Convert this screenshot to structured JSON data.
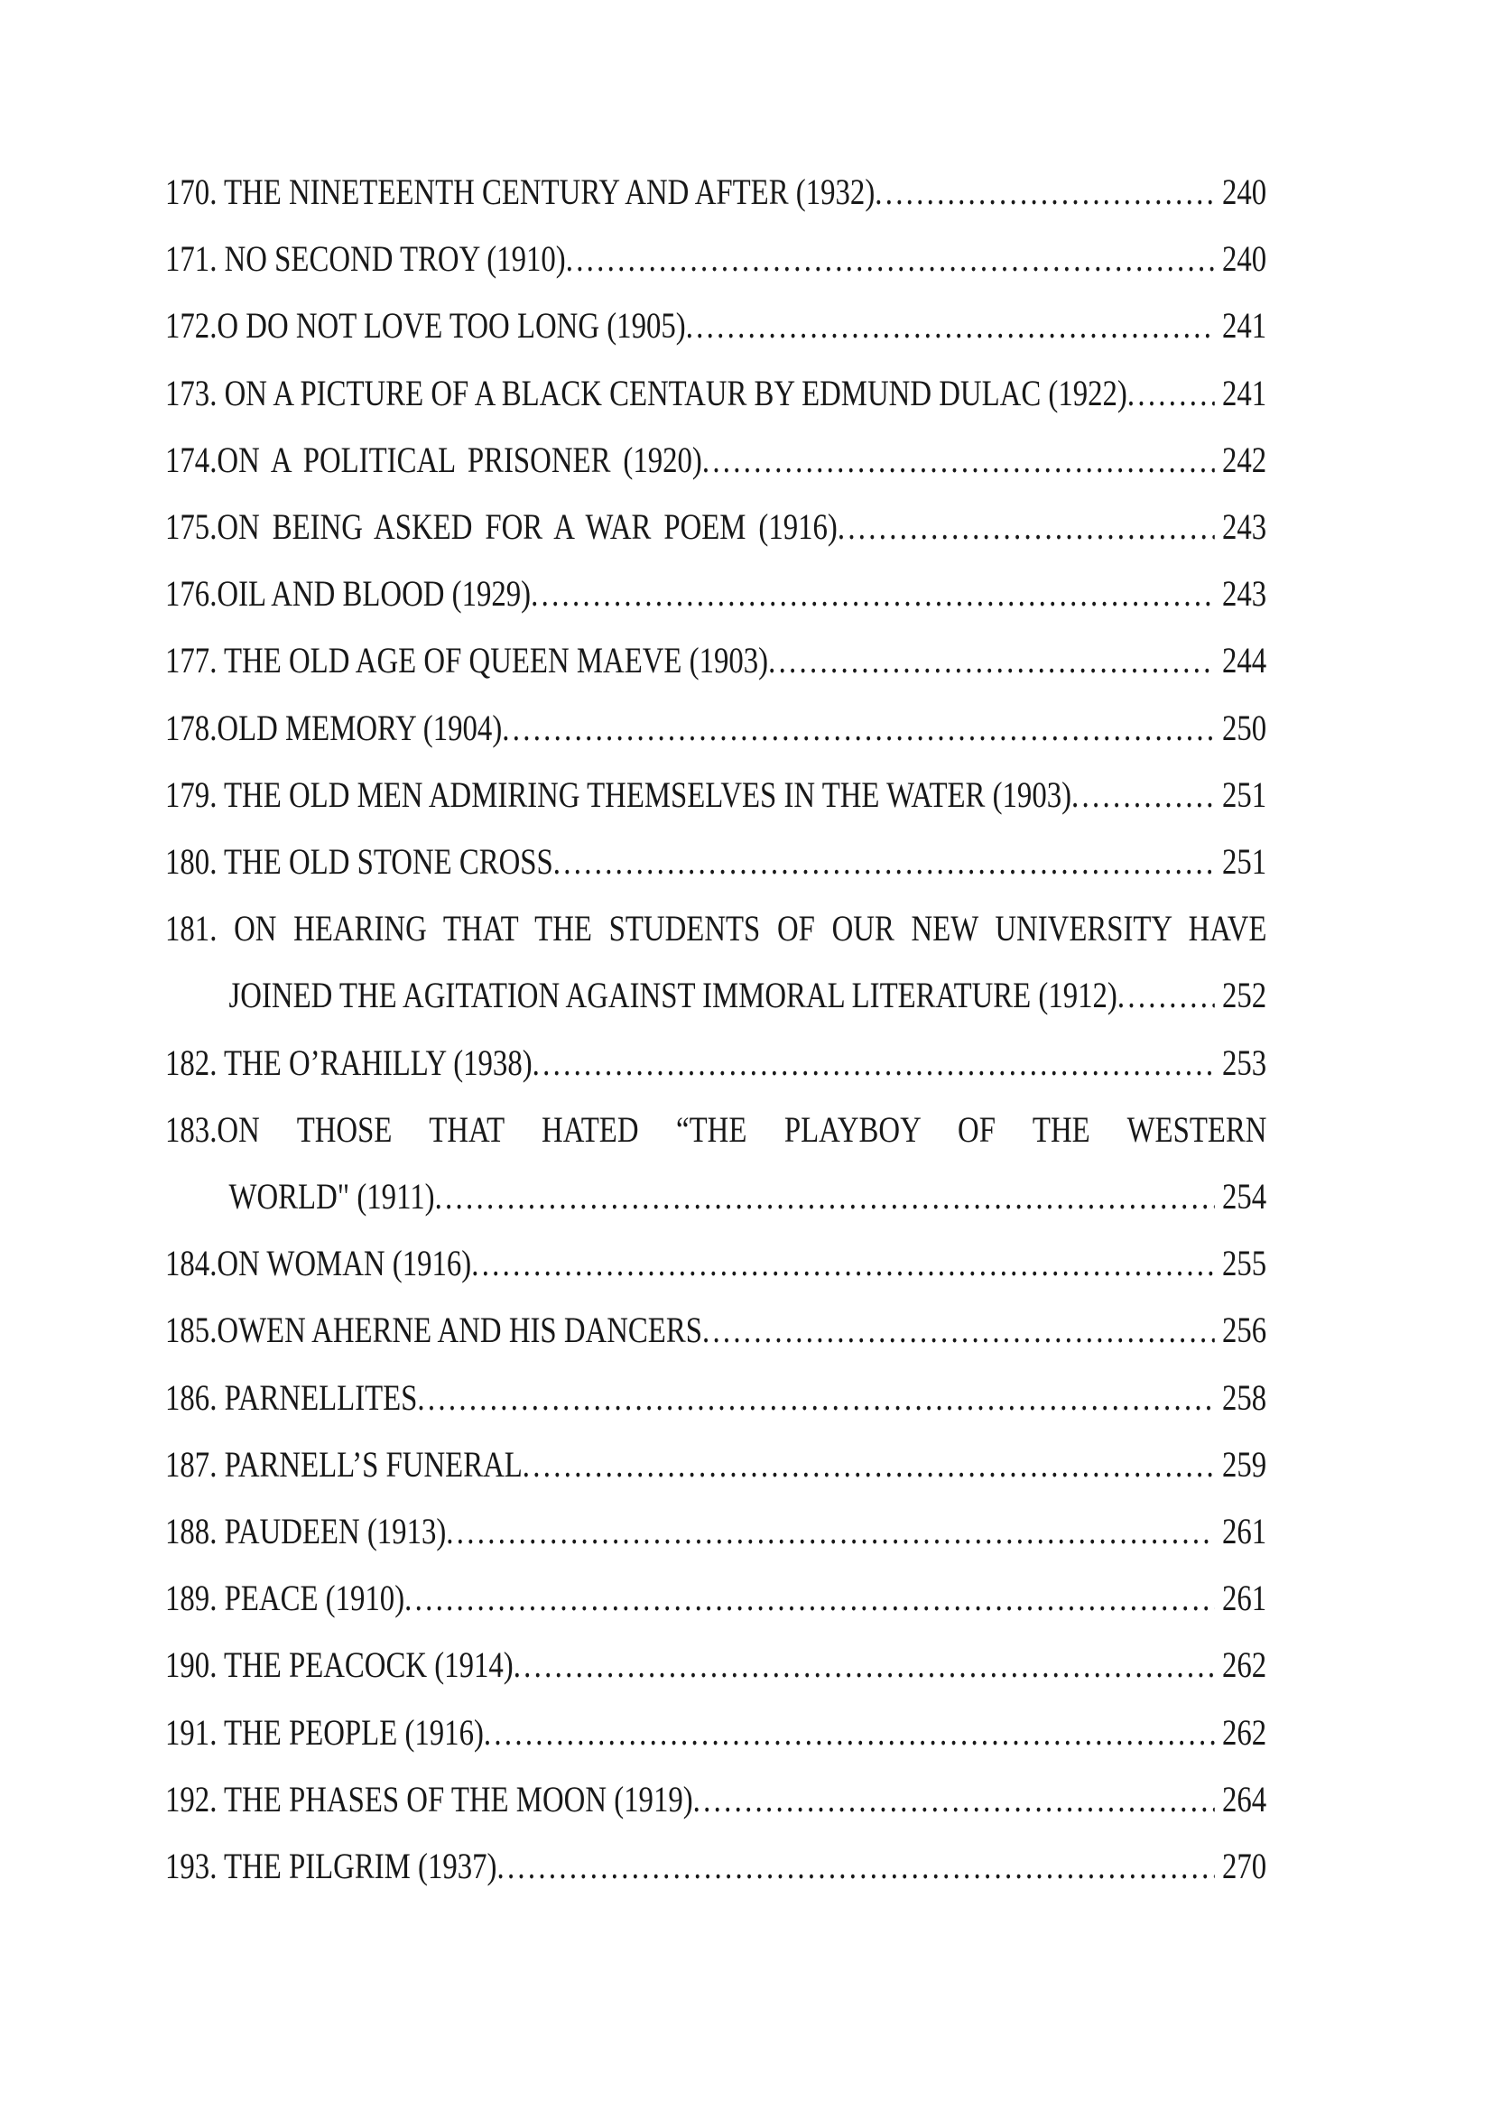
{
  "page": {
    "background": "#ffffff",
    "text_color": "#181818"
  },
  "toc": {
    "entries": [
      {
        "number": "170.",
        "label": "170. THE NINETEENTH CENTURY AND AFTER (1932)",
        "page": "240"
      },
      {
        "number": "171.",
        "label": "171. NO SECOND TROY (1910)",
        "page": "240"
      },
      {
        "number": "172.",
        "label": "172.O DO NOT LOVE TOO LONG (1905)",
        "page": "241"
      },
      {
        "number": "173.",
        "label": "173. ON A PICTURE OF A BLACK CENTAUR BY EDMUND DULAC (1922)",
        "page": "241"
      },
      {
        "number": "174.",
        "label": "174.ON A POLITICAL PRISONER (1920)",
        "page": "242"
      },
      {
        "number": "175.",
        "label": "175.ON BEING ASKED FOR A WAR POEM (1916)",
        "page": "243"
      },
      {
        "number": "176.",
        "label": "176.OIL AND BLOOD (1929)",
        "page": "243"
      },
      {
        "number": "177.",
        "label": "177. THE OLD AGE OF QUEEN MAEVE (1903)",
        "page": "244"
      },
      {
        "number": "178.",
        "label": "178.OLD MEMORY (1904)",
        "page": "250"
      },
      {
        "number": "179.",
        "label": "179. THE OLD MEN ADMIRING THEMSELVES IN THE WATER (1903)",
        "page": "251"
      },
      {
        "number": "180.",
        "label": "180. THE OLD STONE CROSS",
        "page": "251"
      },
      {
        "number": "181.",
        "label_line1": "181. ON HEARING THAT THE STUDENTS OF OUR NEW UNIVERSITY HAVE",
        "label_line2": "JOINED THE AGITATION AGAINST IMMORAL LITERATURE (1912)",
        "page": "252"
      },
      {
        "number": "182.",
        "label": "182. THE O’RAHILLY (1938)",
        "page": "253"
      },
      {
        "number": "183.",
        "label_line1": "183.ON THOSE THAT HATED “THE PLAYBOY OF THE WESTERN",
        "label_line2": "WORLD\" (1911)",
        "page": "254"
      },
      {
        "number": "184.",
        "label": "184.ON WOMAN (1916)",
        "page": "255"
      },
      {
        "number": "185.",
        "label": "185.OWEN AHERNE AND HIS DANCERS",
        "page": "256"
      },
      {
        "number": "186.",
        "label": "186. PARNELLITES",
        "page": "258"
      },
      {
        "number": "187.",
        "label": "187. PARNELL’S FUNERAL",
        "page": "259"
      },
      {
        "number": "188.",
        "label": "188. PAUDEEN (1913)",
        "page": "261"
      },
      {
        "number": "189.",
        "label": "189. PEACE (1910)",
        "page": "261"
      },
      {
        "number": "190.",
        "label": "190. THE PEACOCK (1914)",
        "page": "262"
      },
      {
        "number": "191.",
        "label": "191. THE PEOPLE (1916)",
        "page": "262"
      },
      {
        "number": "192.",
        "label": "192. THE PHASES OF THE MOON (1919)",
        "page": "264"
      },
      {
        "number": "193.",
        "label": "193. THE PILGRIM (1937)",
        "page": "270"
      }
    ]
  }
}
